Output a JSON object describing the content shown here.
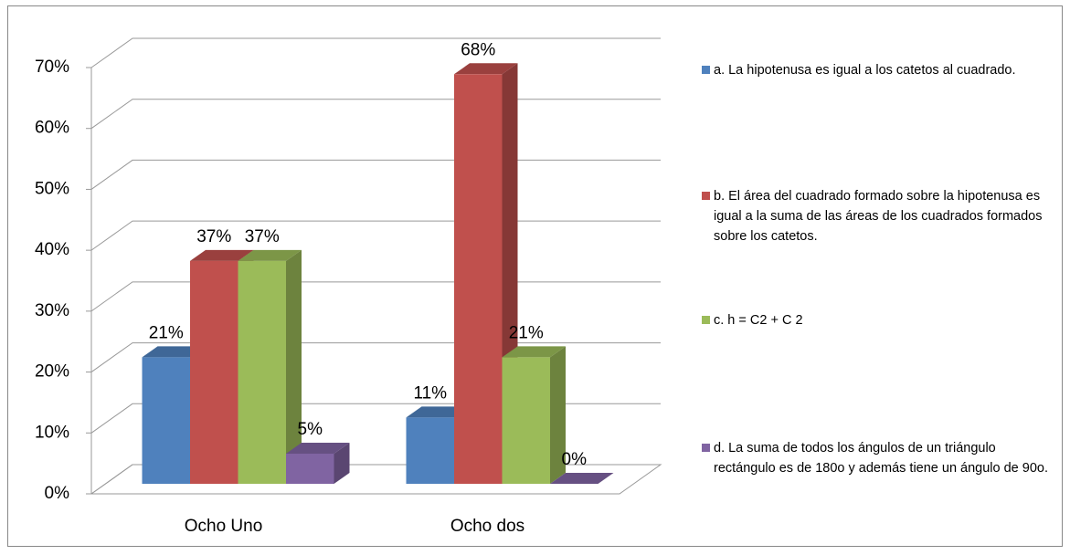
{
  "chart_data": {
    "type": "bar3d",
    "categories": [
      "Ocho Uno",
      "Ocho dos"
    ],
    "series": [
      {
        "name": "a.  La hipotenusa es igual a los catetos al cuadrado.",
        "color": "#4f81bd",
        "values": [
          21,
          11
        ],
        "value_labels": [
          "21%",
          "11%"
        ]
      },
      {
        "name": "b.  El área del cuadrado formado sobre la hipotenusa es igual a la suma de las áreas de los cuadrados formados sobre los catetos.",
        "color": "#c0504d",
        "values": [
          37,
          68
        ],
        "value_labels": [
          "37%",
          "68%"
        ]
      },
      {
        "name": "c.  h = C2  + C 2",
        "color": "#9bbb59",
        "values": [
          37,
          21
        ],
        "value_labels": [
          "37%",
          "21%"
        ]
      },
      {
        "name": "d.  La suma de todos los ángulos de un triángulo rectángulo es de 180o  y además tiene un ángulo de 90o.",
        "color": "#8064a2",
        "values": [
          5,
          0
        ],
        "value_labels": [
          "5%",
          "0%"
        ]
      }
    ],
    "ylim": [
      0,
      70
    ],
    "yticks": [
      {
        "value": 0,
        "label": "0%"
      },
      {
        "value": 10,
        "label": "10%"
      },
      {
        "value": 20,
        "label": "20%"
      },
      {
        "value": 30,
        "label": "30%"
      },
      {
        "value": 40,
        "label": "40%"
      },
      {
        "value": 50,
        "label": "50%"
      },
      {
        "value": 60,
        "label": "60%"
      },
      {
        "value": 70,
        "label": "70%"
      }
    ],
    "grid": true,
    "legend": "right"
  }
}
